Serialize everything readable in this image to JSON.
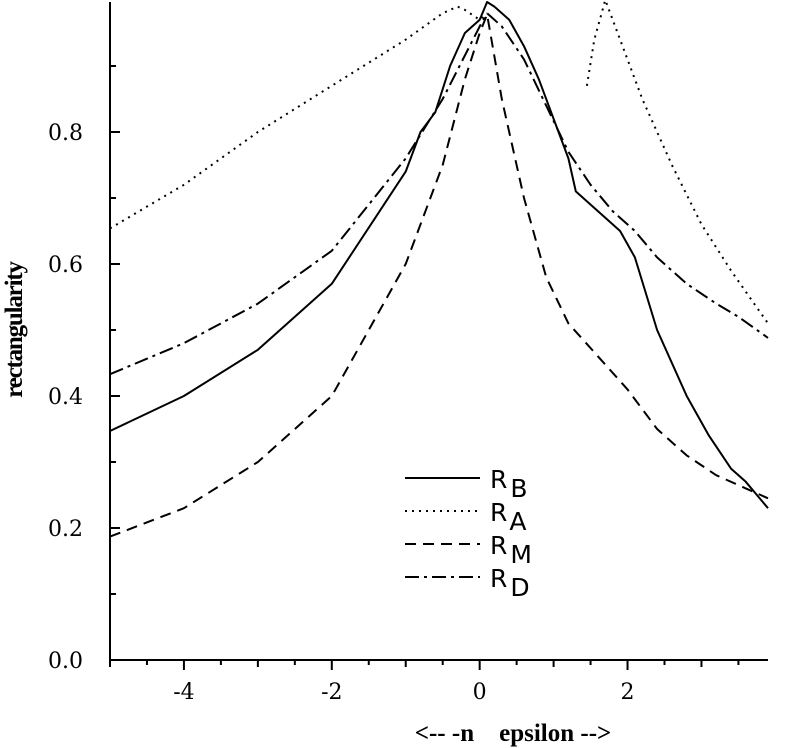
{
  "chart_data": {
    "type": "line",
    "xlabel": "<-- -n    epsilon -->",
    "ylabel": "rectangularity",
    "xlim": [
      -5,
      3.9
    ],
    "ylim": [
      0,
      1.0
    ],
    "x_ticks": [
      -4,
      -2,
      0,
      2
    ],
    "x_tick_labels": [
      "-4",
      "-2",
      "0",
      "2"
    ],
    "y_ticks": [
      0.0,
      0.2,
      0.4,
      0.6,
      0.8
    ],
    "y_tick_labels": [
      "0.0",
      "0.2",
      "0.4",
      "0.6",
      "0.8"
    ],
    "grid": false,
    "legend_position": "lower-center",
    "series": [
      {
        "name": "R_B",
        "label_main": "R",
        "label_sub": "B",
        "style": "solid",
        "x": [
          -5,
          -4,
          -3,
          -2,
          -1,
          -0.8,
          -0.6,
          -0.4,
          -0.2,
          0,
          0.1,
          0.2,
          0.4,
          0.6,
          0.8,
          1.0,
          1.2,
          1.3,
          1.5,
          1.7,
          1.9,
          2.1,
          2.4,
          2.8,
          3.1,
          3.4,
          3.6,
          3.9
        ],
        "y": [
          0.347,
          0.4,
          0.47,
          0.57,
          0.74,
          0.8,
          0.83,
          0.9,
          0.95,
          0.97,
          0.997,
          0.99,
          0.97,
          0.93,
          0.88,
          0.82,
          0.76,
          0.71,
          0.69,
          0.67,
          0.65,
          0.61,
          0.5,
          0.4,
          0.34,
          0.29,
          0.27,
          0.23
        ]
      },
      {
        "name": "R_A",
        "label_main": "R",
        "label_sub": "A",
        "style": "dotted",
        "segments": [
          {
            "x": [
              -5,
              -4,
              -3,
              -2,
              -1,
              -0.5,
              -0.3,
              -0.2,
              0,
              0.1
            ],
            "y": [
              0.654,
              0.72,
              0.8,
              0.87,
              0.94,
              0.98,
              0.99,
              0.985,
              0.97,
              0.98
            ]
          },
          {
            "x": [
              1.45,
              1.55,
              1.7,
              1.9,
              2.2,
              2.6,
              3.0,
              3.4,
              3.9
            ],
            "y": [
              0.87,
              0.94,
              1.0,
              0.94,
              0.85,
              0.75,
              0.66,
              0.59,
              0.51
            ]
          }
        ]
      },
      {
        "name": "R_M",
        "label_main": "R",
        "label_sub": "M",
        "style": "dashed",
        "x": [
          -5,
          -4,
          -3,
          -2,
          -1,
          -0.5,
          -0.2,
          0,
          0.1,
          0.3,
          0.6,
          0.9,
          1.2,
          1.6,
          2.0,
          2.4,
          2.8,
          3.2,
          3.6,
          3.9
        ],
        "y": [
          0.187,
          0.23,
          0.3,
          0.4,
          0.6,
          0.75,
          0.88,
          0.95,
          0.978,
          0.85,
          0.7,
          0.58,
          0.51,
          0.46,
          0.41,
          0.35,
          0.31,
          0.28,
          0.26,
          0.245
        ]
      },
      {
        "name": "R_D",
        "label_main": "R",
        "label_sub": "D",
        "style": "dashdot",
        "x": [
          -5,
          -4,
          -3,
          -2,
          -1,
          -0.5,
          0,
          0.1,
          0.3,
          0.6,
          0.9,
          1.2,
          1.5,
          1.8,
          2.1,
          2.4,
          2.8,
          3.2,
          3.5,
          3.9
        ],
        "y": [
          0.433,
          0.48,
          0.54,
          0.62,
          0.76,
          0.85,
          0.96,
          0.98,
          0.96,
          0.91,
          0.84,
          0.77,
          0.72,
          0.68,
          0.65,
          0.61,
          0.57,
          0.54,
          0.52,
          0.488
        ]
      }
    ]
  }
}
